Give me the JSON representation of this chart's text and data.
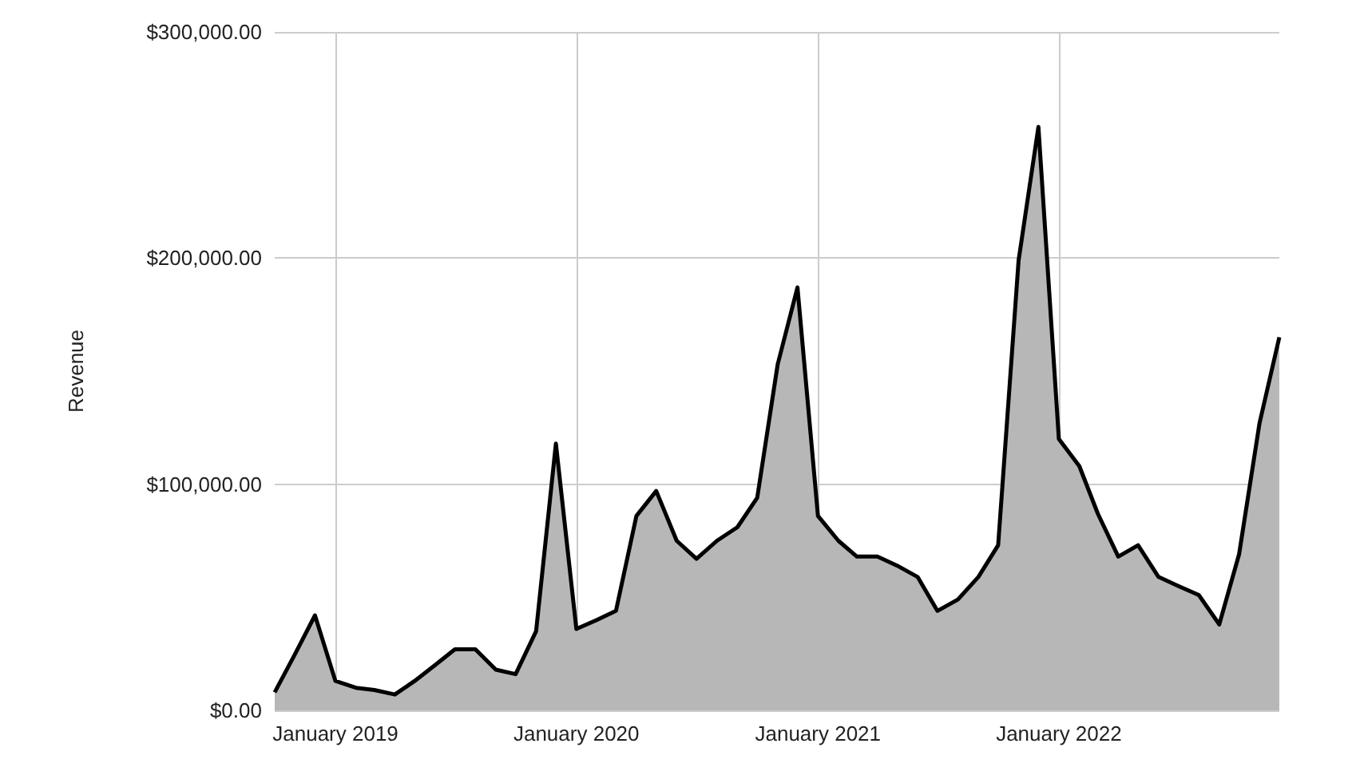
{
  "chart_data": {
    "type": "area",
    "ylabel": "Revenue",
    "x": [
      "2018-10",
      "2018-11",
      "2018-12",
      "2019-01",
      "2019-02",
      "2019-03",
      "2019-04",
      "2019-05",
      "2019-06",
      "2019-07",
      "2019-08",
      "2019-09",
      "2019-10",
      "2019-11",
      "2019-12",
      "2020-01",
      "2020-02",
      "2020-03",
      "2020-04",
      "2020-05",
      "2020-06",
      "2020-07",
      "2020-08",
      "2020-09",
      "2020-10",
      "2020-11",
      "2020-12",
      "2021-01",
      "2021-02",
      "2021-03",
      "2021-04",
      "2021-05",
      "2021-06",
      "2021-07",
      "2021-08",
      "2021-09",
      "2021-10",
      "2021-11",
      "2021-12",
      "2022-01",
      "2022-02",
      "2022-03",
      "2022-04",
      "2022-05",
      "2022-06",
      "2022-07",
      "2022-08",
      "2022-09",
      "2022-10",
      "2022-11",
      "2022-12"
    ],
    "series": [
      {
        "color": "#b7b7b7",
        "values": [
          8000,
          25000,
          42000,
          13000,
          10000,
          9000,
          7000,
          13000,
          20000,
          27000,
          27000,
          18000,
          16000,
          35000,
          118000,
          36000,
          40000,
          44000,
          86000,
          97000,
          75000,
          67000,
          75000,
          81000,
          94000,
          153000,
          187000,
          86000,
          75000,
          68000,
          68000,
          64000,
          59000,
          44000,
          49000,
          59000,
          73000,
          199000,
          258000,
          120000,
          108000,
          87000,
          68000,
          73000,
          59000,
          55000,
          51000,
          38000,
          69000,
          127000,
          165000
        ]
      }
    ],
    "xlim": [
      "2018-10",
      "2022-12"
    ],
    "xticks": [
      {
        "value": "2019-01",
        "label": "January 2019"
      },
      {
        "value": "2020-01",
        "label": "January 2020"
      },
      {
        "value": "2021-01",
        "label": "January 2021"
      },
      {
        "value": "2022-01",
        "label": "January 2022"
      }
    ],
    "ylim": [
      0,
      300000
    ],
    "yticks": [
      {
        "value": 0,
        "label": "$0.00"
      },
      {
        "value": 100000,
        "label": "$100,000.00"
      },
      {
        "value": 200000,
        "label": "$200,000.00"
      },
      {
        "value": 300000,
        "label": "$300,000.00"
      }
    ],
    "grid": true,
    "marker": "none",
    "line_style": "solid"
  }
}
